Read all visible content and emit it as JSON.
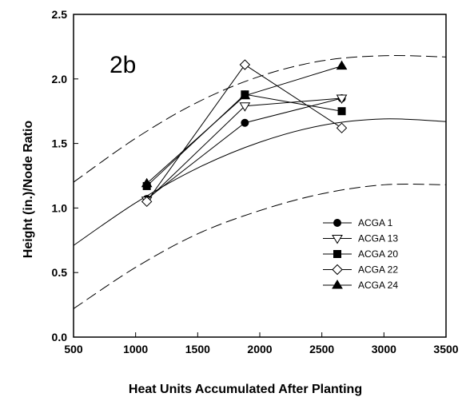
{
  "chart_data": {
    "type": "line",
    "panel_label": "2b",
    "xlabel": "Heat Units Accumulated After Planting",
    "ylabel": "Height (in.)/Node Ratio",
    "xlim": [
      500,
      3500
    ],
    "ylim": [
      0.0,
      2.5
    ],
    "xticks": [
      "500",
      "1000",
      "1500",
      "2000",
      "2500",
      "3000",
      "3500"
    ],
    "yticks": [
      "0.0",
      "0.5",
      "1.0",
      "1.5",
      "2.0",
      "2.5"
    ],
    "grid": false,
    "legend_position": "bottom-right",
    "series": [
      {
        "name": "ACGA 1",
        "marker": "circle-filled",
        "x": [
          1090,
          1880,
          2660
        ],
        "y": [
          1.07,
          1.66,
          1.85
        ]
      },
      {
        "name": "ACGA 13",
        "marker": "triangle-down-open",
        "x": [
          1090,
          1880,
          2660
        ],
        "y": [
          1.06,
          1.79,
          1.85
        ]
      },
      {
        "name": "ACGA 20",
        "marker": "square-filled",
        "x": [
          1090,
          1880,
          2660
        ],
        "y": [
          1.17,
          1.88,
          1.75
        ]
      },
      {
        "name": "ACGA 22",
        "marker": "diamond-open",
        "x": [
          1090,
          1880,
          2660
        ],
        "y": [
          1.05,
          2.11,
          1.62
        ]
      },
      {
        "name": "ACGA 24",
        "marker": "triangle-up-filled",
        "x": [
          1090,
          1880,
          2660
        ],
        "y": [
          1.19,
          1.87,
          2.1
        ]
      }
    ],
    "reference_curves": [
      {
        "style": "dashed",
        "x": [
          500,
          1000,
          1500,
          2000,
          2500,
          3000,
          3500
        ],
        "y": [
          1.2,
          1.54,
          1.82,
          2.02,
          2.14,
          2.18,
          2.17
        ]
      },
      {
        "style": "solid",
        "x": [
          500,
          1000,
          1500,
          2000,
          2500,
          3000,
          3500
        ],
        "y": [
          0.71,
          1.04,
          1.31,
          1.51,
          1.64,
          1.69,
          1.67
        ]
      },
      {
        "style": "dashed",
        "x": [
          500,
          1000,
          1500,
          2000,
          2500,
          3000,
          3500
        ],
        "y": [
          0.22,
          0.54,
          0.8,
          0.98,
          1.11,
          1.18,
          1.18
        ]
      }
    ]
  }
}
